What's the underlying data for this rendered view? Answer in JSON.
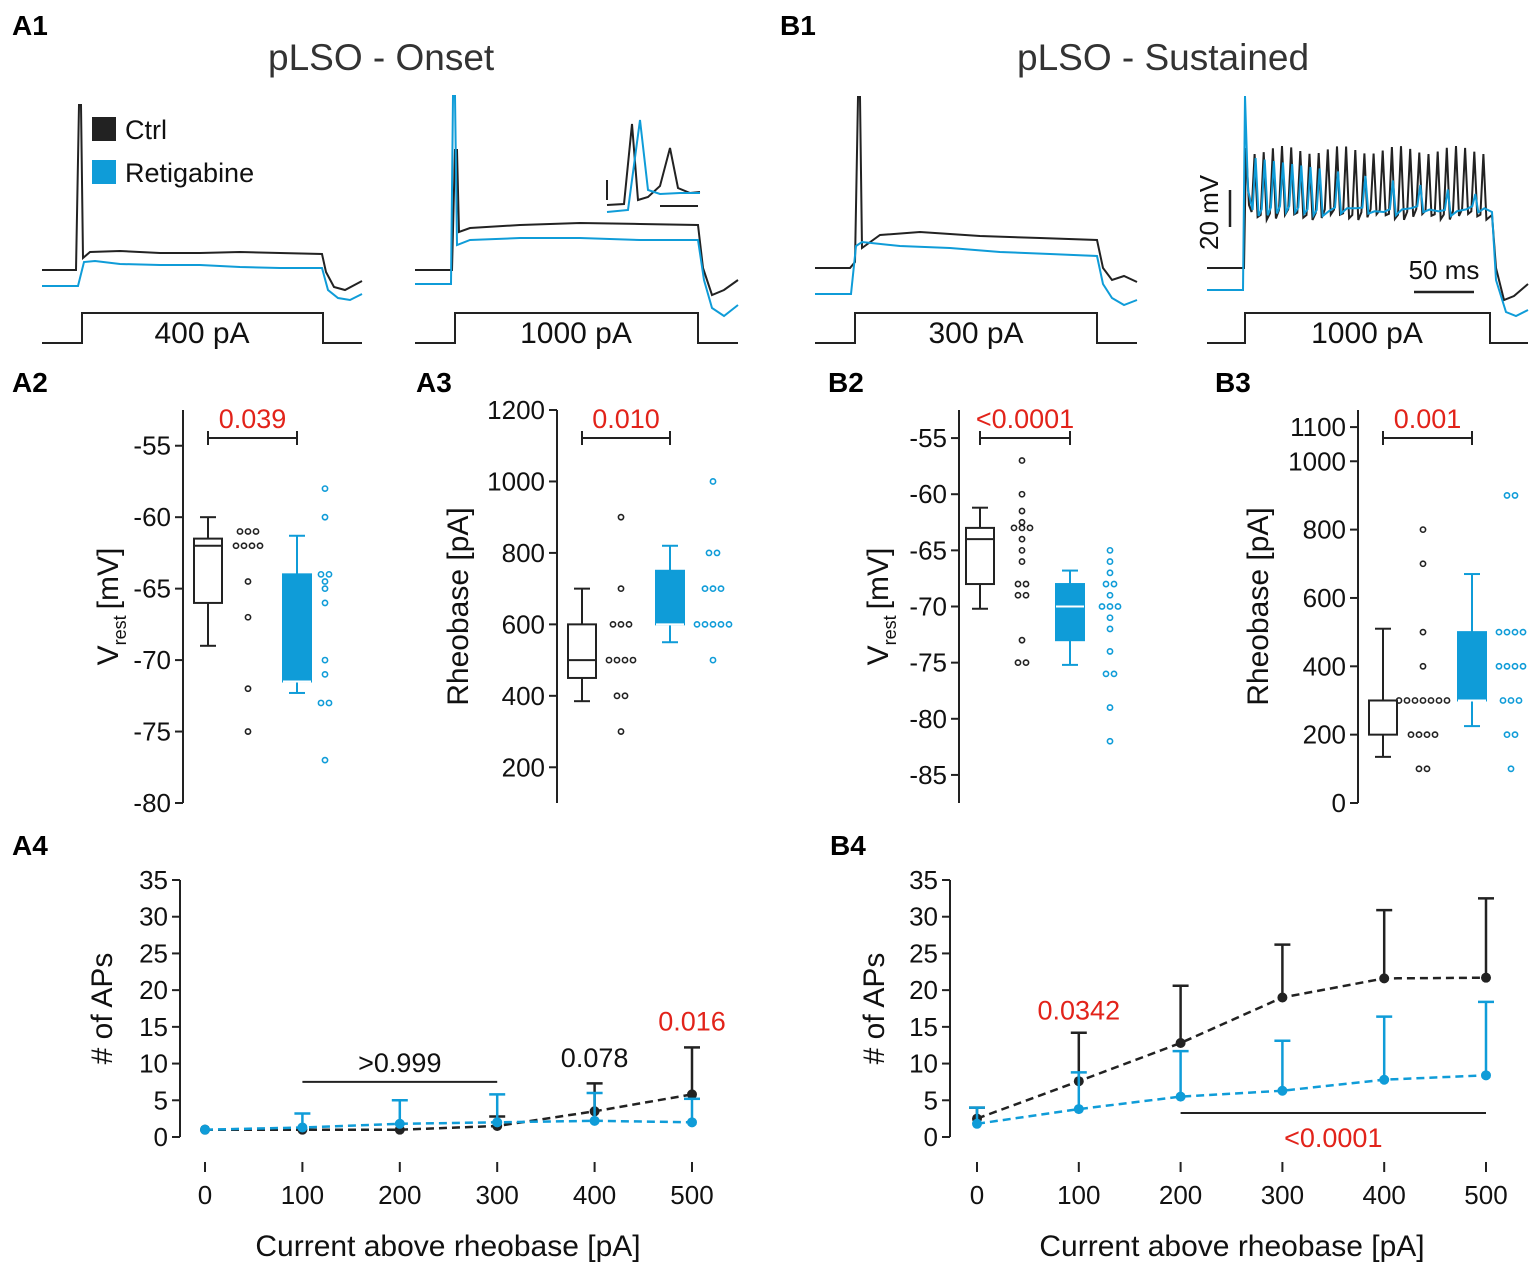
{
  "colors": {
    "ctrl": "#222222",
    "retigabine": "#0f9cd8",
    "significant": "#e2231a"
  },
  "panels": {
    "a1": {
      "label": "A1",
      "title": "pLSO - Onset",
      "steps": [
        "400 pA",
        "1000 pA"
      ]
    },
    "b1": {
      "label": "B1",
      "title": "pLSO - Sustained",
      "steps": [
        "300 pA",
        "1000 pA"
      ]
    },
    "legend": {
      "ctrl": "Ctrl",
      "retigabine": "Retigabine"
    },
    "scalebar": {
      "voltage": "20 mV",
      "time": "50 ms"
    }
  },
  "chart_data": [
    {
      "id": "A2",
      "type": "box",
      "label": "A2",
      "ylabel": "V",
      "ylabel_sub": "rest",
      "ylabel_unit": "[mV]",
      "ylim": [
        -80,
        -52.5
      ],
      "yticks": [
        -80,
        -75,
        -70,
        -65,
        -60,
        -55
      ],
      "tick_labels": [
        "-80",
        "-75",
        "-70",
        "-65",
        "-60",
        "-55"
      ],
      "pvalue": "0.039",
      "groups": [
        {
          "name": "Ctrl",
          "whisker_min": -69,
          "q1": -66,
          "median": -62,
          "q3": -61.5,
          "whisker_max": -60,
          "points": [
            -61,
            -62,
            -62,
            -62,
            -61,
            -61,
            -62,
            -64.5,
            -67,
            -72,
            -75
          ]
        },
        {
          "name": "Retigabine",
          "whisker_min": -72.3,
          "q1": -71.5,
          "median": -71.5,
          "q3": -64,
          "whisker_max": -61.3,
          "points": [
            -58,
            -60,
            -64,
            -64,
            -64.5,
            -65,
            -66,
            -70,
            -71,
            -73,
            -73,
            -77
          ]
        }
      ]
    },
    {
      "id": "A3",
      "type": "box",
      "label": "A3",
      "ylabel": "Rheobase [pA]",
      "ylim": [
        100,
        1200
      ],
      "yticks": [
        200,
        400,
        600,
        800,
        1000,
        1200
      ],
      "tick_labels": [
        "200",
        "400",
        "600",
        "800",
        "1000",
        "1200"
      ],
      "pvalue": "0.010",
      "groups": [
        {
          "name": "Ctrl",
          "whisker_min": 385,
          "q1": 450,
          "median": 500,
          "q3": 600,
          "whisker_max": 700,
          "points": [
            900,
            700,
            600,
            600,
            600,
            500,
            500,
            500,
            500,
            400,
            400,
            300
          ]
        },
        {
          "name": "Retigabine",
          "whisker_min": 550,
          "q1": 600,
          "median": 600,
          "q3": 750,
          "whisker_max": 820,
          "points": [
            1000,
            800,
            800,
            700,
            700,
            700,
            600,
            600,
            600,
            600,
            600,
            500
          ]
        }
      ]
    },
    {
      "id": "B2",
      "type": "box",
      "label": "B2",
      "ylabel": "V",
      "ylabel_sub": "rest",
      "ylabel_unit": "[mV]",
      "ylim": [
        -87.5,
        -52.5
      ],
      "yticks": [
        -85,
        -80,
        -75,
        -70,
        -65,
        -60,
        -55
      ],
      "tick_labels": [
        "-85",
        "-80",
        "-75",
        "-70",
        "-65",
        "-60",
        "-55"
      ],
      "pvalue": "<0.0001",
      "groups": [
        {
          "name": "Ctrl",
          "whisker_min": -70.2,
          "q1": -68,
          "median": -64,
          "q3": -63,
          "whisker_max": -61.2,
          "points": [
            -57,
            -60,
            -61.5,
            -62.5,
            -63,
            -63,
            -63,
            -64,
            -65,
            -66,
            -68,
            -68,
            -69,
            -69,
            -73,
            -75,
            -75
          ]
        },
        {
          "name": "Retigabine",
          "whisker_min": -75.2,
          "q1": -73,
          "median": -70,
          "q3": -68,
          "whisker_max": -66.8,
          "points": [
            -65,
            -66,
            -67,
            -68,
            -68,
            -69,
            -70,
            -70,
            -70,
            -71,
            -72,
            -74,
            -76,
            -76,
            -79,
            -82
          ]
        }
      ]
    },
    {
      "id": "B3",
      "type": "box",
      "label": "B3",
      "ylabel": "Rheobase [pA]",
      "ylim": [
        0,
        1150
      ],
      "yticks": [
        0,
        200,
        400,
        600,
        800,
        1000,
        1100
      ],
      "tick_labels": [
        "0",
        "200",
        "400",
        "600",
        "800",
        "1000",
        "1100"
      ],
      "pvalue": "0.001",
      "groups": [
        {
          "name": "Ctrl",
          "whisker_min": 135,
          "q1": 200,
          "median": 300,
          "q3": 300,
          "whisker_max": 510,
          "points": [
            800,
            700,
            500,
            400,
            300,
            300,
            300,
            300,
            300,
            300,
            300,
            200,
            200,
            200,
            200,
            100,
            100
          ]
        },
        {
          "name": "Retigabine",
          "whisker_min": 225,
          "q1": 300,
          "median": 300,
          "q3": 500,
          "whisker_max": 670,
          "points": [
            900,
            900,
            500,
            500,
            500,
            500,
            400,
            400,
            400,
            400,
            300,
            300,
            300,
            200,
            200,
            100
          ]
        }
      ]
    },
    {
      "id": "A4",
      "type": "line",
      "label": "A4",
      "xlabel": "Current above rheobase [pA]",
      "ylabel": "# of APs",
      "x": [
        0,
        100,
        200,
        300,
        400,
        500
      ],
      "xlim": [
        0,
        500
      ],
      "ylim": [
        0,
        35
      ],
      "yticks": [
        0,
        5,
        10,
        15,
        20,
        25,
        30,
        35
      ],
      "ytick_labels": [
        "0",
        "5",
        "10",
        "15",
        "20",
        "25",
        "30",
        "35"
      ],
      "xtick_labels": [
        "0",
        "100",
        "200",
        "300",
        "400",
        "500"
      ],
      "series": [
        {
          "name": "Ctrl",
          "values": [
            1,
            1,
            1,
            1.5,
            3.5,
            5.8
          ],
          "err": [
            0,
            0,
            0,
            1.3,
            3.8,
            6.4
          ]
        },
        {
          "name": "Retigabine",
          "values": [
            1,
            1.3,
            1.8,
            2,
            2.2,
            2
          ],
          "err": [
            0,
            1.9,
            3.2,
            3.8,
            3.8,
            3.2
          ]
        }
      ],
      "annotations": [
        {
          "text": ">0.999",
          "from": 100,
          "to": 300,
          "y": 7.5,
          "style": "bar",
          "color": "black"
        },
        {
          "text": "0.078",
          "at": 400,
          "y": 9.5,
          "color": "black"
        },
        {
          "text": "0.016",
          "at": 500,
          "y": 14.5,
          "color": "red"
        }
      ]
    },
    {
      "id": "B4",
      "type": "line",
      "label": "B4",
      "xlabel": "Current above rheobase [pA]",
      "ylabel": "# of APs",
      "x": [
        0,
        100,
        200,
        300,
        400,
        500
      ],
      "xlim": [
        0,
        500
      ],
      "ylim": [
        0,
        35
      ],
      "yticks": [
        0,
        5,
        10,
        15,
        20,
        25,
        30,
        35
      ],
      "ytick_labels": [
        "0",
        "5",
        "10",
        "15",
        "20",
        "25",
        "30",
        "35"
      ],
      "xtick_labels": [
        "0",
        "100",
        "200",
        "300",
        "400",
        "500"
      ],
      "series": [
        {
          "name": "Ctrl",
          "values": [
            2.5,
            7.6,
            12.8,
            19,
            21.6,
            21.7
          ],
          "err": [
            1.5,
            6.6,
            7.8,
            7.2,
            9.3,
            10.8
          ]
        },
        {
          "name": "Retigabine",
          "values": [
            1.8,
            3.8,
            5.5,
            6.3,
            7.8,
            8.4
          ],
          "err": [
            2.2,
            5,
            6.2,
            6.8,
            8.6,
            10
          ]
        }
      ],
      "annotations": [
        {
          "text": "0.0342",
          "at": 100,
          "y": 16,
          "color": "red"
        },
        {
          "text": "<0.0001",
          "from": 200,
          "to": 500,
          "y": 3,
          "style": "bar-below",
          "color": "red"
        }
      ]
    }
  ]
}
